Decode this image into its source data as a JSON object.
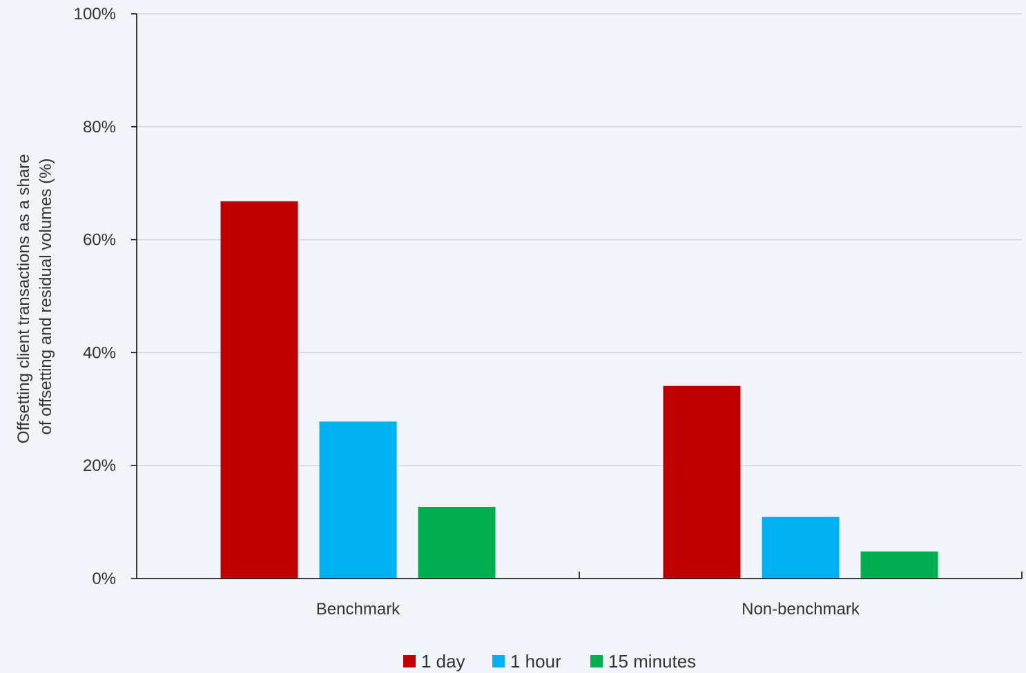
{
  "chart_data": {
    "type": "bar",
    "title": "",
    "xlabel": "",
    "ylabel_lines": [
      "Offsetting client transactions as a share",
      "of offsetting and residual volumes (%)"
    ],
    "ylim": [
      0,
      100
    ],
    "yticks": [
      0,
      20,
      40,
      60,
      80,
      100
    ],
    "ytick_labels": [
      "0%",
      "20%",
      "40%",
      "60%",
      "80%",
      "100%"
    ],
    "grid": true,
    "legend_position": "bottom",
    "categories": [
      "Benchmark",
      "Non-benchmark"
    ],
    "series": [
      {
        "name": "1 day",
        "color": "#c00000",
        "values": [
          66.8,
          34.1
        ]
      },
      {
        "name": "1 hour",
        "color": "#00b0f0",
        "values": [
          27.8,
          10.9
        ]
      },
      {
        "name": "15 minutes",
        "color": "#00b050",
        "values": [
          12.7,
          4.8
        ]
      }
    ]
  },
  "colors": {
    "background": "#f1f5f9",
    "grid": "#d0d5db",
    "axis": "#000000"
  }
}
